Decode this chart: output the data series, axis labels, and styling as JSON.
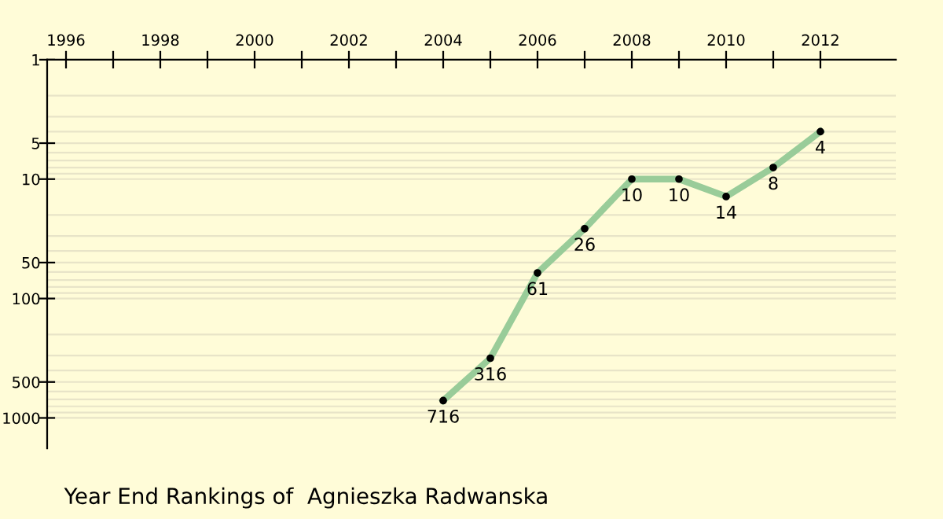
{
  "chart_data": {
    "type": "line",
    "title": "Year End Rankings of  Agnieszka Radwanska",
    "x": [
      2004,
      2005,
      2006,
      2007,
      2008,
      2009,
      2010,
      2011,
      2012
    ],
    "series": [
      {
        "color": "#99cc99",
        "values": [
          716,
          316,
          61,
          26,
          10,
          10,
          14,
          8,
          4
        ]
      }
    ],
    "data_labels": true,
    "marker": "circle",
    "line_style": "solid",
    "log": true,
    "grid": "y",
    "xlim": [
      1995.6,
      2013.6
    ],
    "xticks": [
      1996,
      {
        "value": 1997,
        "label": null
      },
      1998,
      {
        "value": 1999,
        "label": null
      },
      2000,
      {
        "value": 2001,
        "label": null
      },
      2002,
      {
        "value": 2003,
        "label": null
      },
      2004,
      {
        "value": 2005,
        "label": null
      },
      2006,
      {
        "value": 2007,
        "label": null
      },
      2008,
      {
        "value": 2009,
        "label": null
      },
      2010,
      {
        "value": 2011,
        "label": null
      },
      2012
    ],
    "ylim": [
      1800,
      1
    ],
    "yticks": [
      1,
      {
        "value": 2,
        "label": null
      },
      {
        "value": 3,
        "label": null
      },
      {
        "value": 4,
        "label": null
      },
      5,
      {
        "value": 6,
        "label": null
      },
      {
        "value": 7,
        "label": null
      },
      {
        "value": 8,
        "label": null
      },
      {
        "value": 9,
        "label": null
      },
      10,
      {
        "value": 20,
        "label": null
      },
      {
        "value": 30,
        "label": null
      },
      {
        "value": 40,
        "label": null
      },
      50,
      {
        "value": 60,
        "label": null
      },
      {
        "value": 70,
        "label": null
      },
      {
        "value": 80,
        "label": null
      },
      {
        "value": 90,
        "label": null
      },
      100,
      {
        "value": 200,
        "label": null
      },
      {
        "value": 300,
        "label": null
      },
      {
        "value": 400,
        "label": null
      },
      500,
      {
        "value": 600,
        "label": null
      },
      {
        "value": 700,
        "label": null
      },
      {
        "value": 800,
        "label": null
      },
      {
        "value": 900,
        "label": null
      },
      1000
    ]
  }
}
